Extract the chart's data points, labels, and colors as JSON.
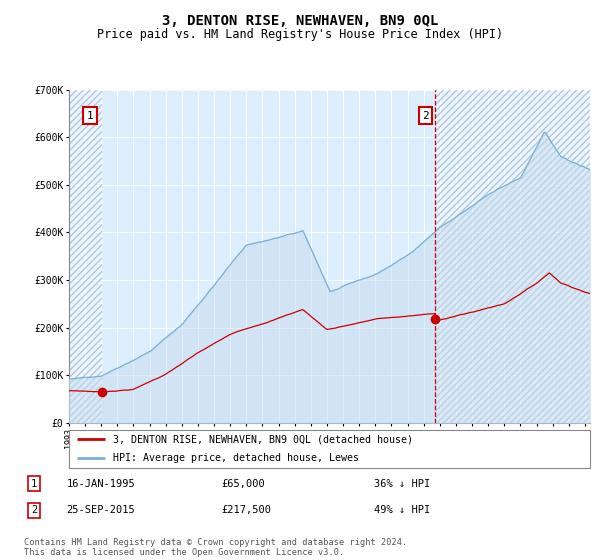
{
  "title": "3, DENTON RISE, NEWHAVEN, BN9 0QL",
  "subtitle": "Price paid vs. HM Land Registry's House Price Index (HPI)",
  "title_fontsize": 10,
  "subtitle_fontsize": 8.5,
  "hpi_color": "#7ab0d4",
  "hpi_fill": "#c5dcef",
  "price_color": "#cc0000",
  "bg_color": "#ddeeff",
  "hatch_color": "#b0c8dd",
  "ylim": [
    0,
    700000
  ],
  "yticks": [
    0,
    100000,
    200000,
    300000,
    400000,
    500000,
    600000,
    700000
  ],
  "ytick_labels": [
    "£0",
    "£100K",
    "£200K",
    "£300K",
    "£400K",
    "£500K",
    "£600K",
    "£700K"
  ],
  "sale1_price": 65000,
  "sale1_year": 1995.04,
  "sale2_price": 217500,
  "sale2_year": 2015.73,
  "legend_line1": "3, DENTON RISE, NEWHAVEN, BN9 0QL (detached house)",
  "legend_line2": "HPI: Average price, detached house, Lewes",
  "sale1_note1": "16-JAN-1995",
  "sale1_note2": "£65,000",
  "sale1_note3": "36% ↓ HPI",
  "sale2_note1": "25-SEP-2015",
  "sale2_note2": "£217,500",
  "sale2_note3": "49% ↓ HPI",
  "footnote": "Contains HM Land Registry data © Crown copyright and database right 2024.\nThis data is licensed under the Open Government Licence v3.0.",
  "xmin": 1993.0,
  "xmax": 2025.3
}
